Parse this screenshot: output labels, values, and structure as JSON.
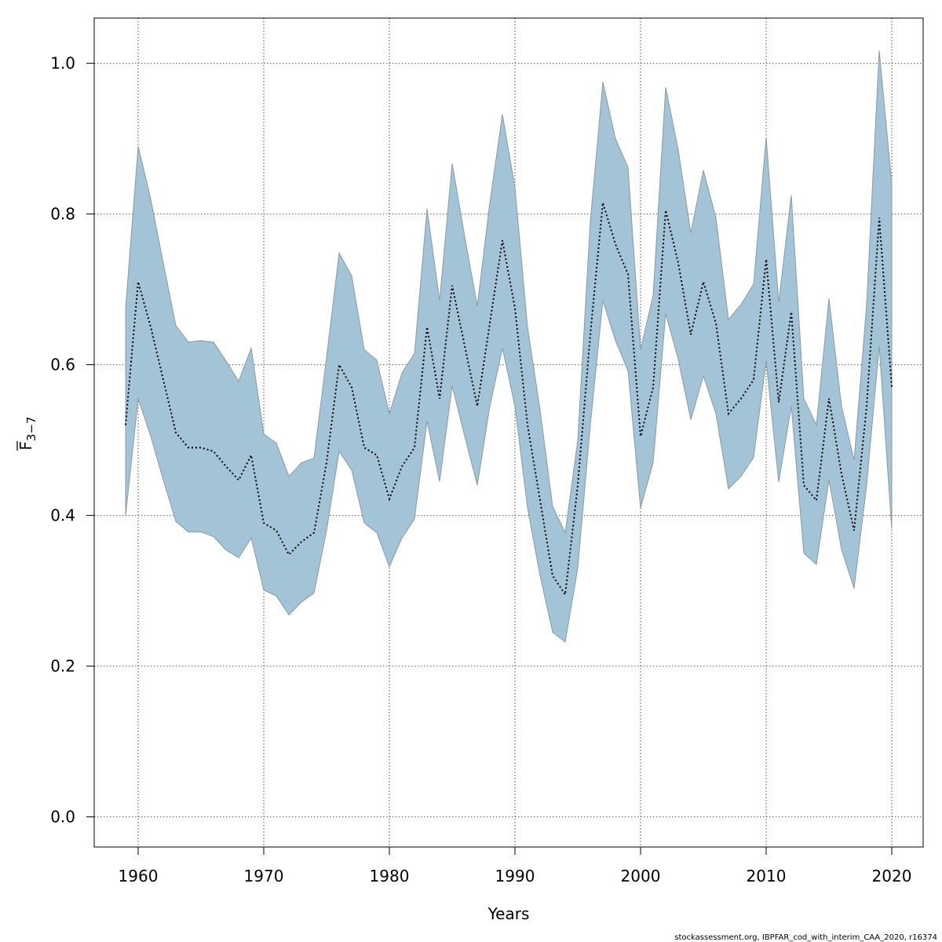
{
  "chart_data": {
    "type": "line",
    "xlabel": "Years",
    "ylabel_main": "F",
    "ylabel_sub": "3−7",
    "xlim": [
      1956.5,
      2022.5
    ],
    "ylim": [
      -0.04,
      1.06
    ],
    "xticks": [
      1960,
      1970,
      1980,
      1990,
      2000,
      2010,
      2020
    ],
    "xtick_labels": [
      "1960",
      "1970",
      "1980",
      "1990",
      "2000",
      "2010",
      "2020"
    ],
    "yticks": [
      0.0,
      0.2,
      0.4,
      0.6,
      0.8,
      1.0
    ],
    "ytick_labels": [
      "0.0",
      "0.2",
      "0.4",
      "0.6",
      "0.8",
      "1.0"
    ],
    "grid": true,
    "band_color": "#a3c4d6",
    "band_edge_color": "#8a9aa4",
    "line_color": "#000000",
    "x": [
      1959,
      1960,
      1961,
      1962,
      1963,
      1964,
      1965,
      1966,
      1967,
      1968,
      1969,
      1970,
      1971,
      1972,
      1973,
      1974,
      1975,
      1976,
      1977,
      1978,
      1979,
      1980,
      1981,
      1982,
      1983,
      1984,
      1985,
      1986,
      1987,
      1988,
      1989,
      1990,
      1991,
      1992,
      1993,
      1994,
      1995,
      1996,
      1997,
      1998,
      1999,
      2000,
      2001,
      2002,
      2003,
      2004,
      2005,
      2006,
      2007,
      2008,
      2009,
      2010,
      2011,
      2012,
      2013,
      2014,
      2015,
      2016,
      2017,
      2018,
      2019,
      2020
    ],
    "series": [
      {
        "name": "estimate",
        "values": [
          0.52,
          0.71,
          0.65,
          0.58,
          0.51,
          0.49,
          0.49,
          0.485,
          0.465,
          0.447,
          0.48,
          0.39,
          0.38,
          0.348,
          0.365,
          0.377,
          0.47,
          0.6,
          0.57,
          0.49,
          0.48,
          0.422,
          0.465,
          0.49,
          0.65,
          0.555,
          0.705,
          0.625,
          0.545,
          0.655,
          0.765,
          0.675,
          0.52,
          0.42,
          0.32,
          0.295,
          0.44,
          0.64,
          0.815,
          0.76,
          0.72,
          0.505,
          0.57,
          0.805,
          0.735,
          0.64,
          0.71,
          0.655,
          0.535,
          0.555,
          0.58,
          0.74,
          0.55,
          0.67,
          0.44,
          0.42,
          0.555,
          0.455,
          0.38,
          0.545,
          0.795,
          0.57
        ]
      },
      {
        "name": "upper",
        "values": [
          0.675,
          0.89,
          0.82,
          0.735,
          0.652,
          0.63,
          0.632,
          0.63,
          0.605,
          0.578,
          0.622,
          0.508,
          0.496,
          0.452,
          0.47,
          0.476,
          0.61,
          0.748,
          0.718,
          0.62,
          0.606,
          0.535,
          0.589,
          0.615,
          0.807,
          0.685,
          0.867,
          0.77,
          0.678,
          0.815,
          0.932,
          0.835,
          0.65,
          0.54,
          0.412,
          0.377,
          0.5,
          0.79,
          0.975,
          0.9,
          0.862,
          0.62,
          0.692,
          0.968,
          0.885,
          0.775,
          0.858,
          0.795,
          0.66,
          0.68,
          0.707,
          0.902,
          0.683,
          0.825,
          0.555,
          0.52,
          0.688,
          0.545,
          0.473,
          0.68,
          1.017,
          0.84
        ]
      },
      {
        "name": "lower",
        "values": [
          0.4,
          0.555,
          0.505,
          0.447,
          0.392,
          0.378,
          0.378,
          0.372,
          0.354,
          0.344,
          0.37,
          0.301,
          0.293,
          0.268,
          0.285,
          0.297,
          0.38,
          0.485,
          0.46,
          0.39,
          0.377,
          0.332,
          0.37,
          0.395,
          0.525,
          0.445,
          0.572,
          0.505,
          0.44,
          0.545,
          0.622,
          0.545,
          0.41,
          0.32,
          0.245,
          0.232,
          0.33,
          0.52,
          0.685,
          0.632,
          0.592,
          0.41,
          0.47,
          0.668,
          0.607,
          0.527,
          0.585,
          0.535,
          0.435,
          0.452,
          0.477,
          0.605,
          0.444,
          0.545,
          0.35,
          0.335,
          0.447,
          0.355,
          0.303,
          0.44,
          0.625,
          0.382
        ]
      }
    ]
  },
  "footer": {
    "credit": "stockassessment.org, IBPFAR_cod_with_interim_CAA_2020, r16374"
  }
}
